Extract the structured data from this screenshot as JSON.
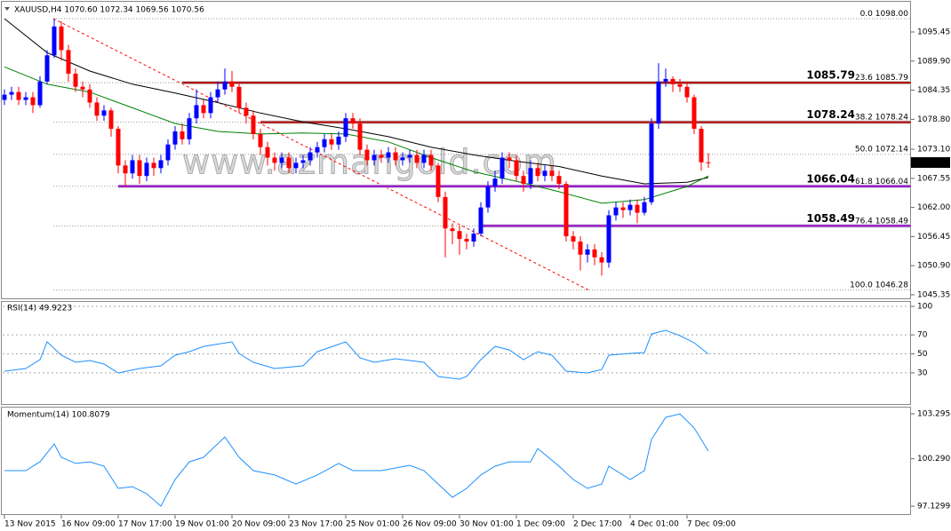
{
  "chart_data": [
    {
      "type": "candlestick",
      "title": "XAUUSD,H4 1070.60 1072.34 1069.56 1070.56",
      "up_color": "#0000ff",
      "down_color": "#ff0000",
      "open": [
        1082.5,
        1083.5,
        1084.0,
        1082.5,
        1083.0,
        1081.5,
        1086.0,
        1091.0,
        1096.5,
        1092.0,
        1087.5,
        1085.0,
        1084.5,
        1082.0,
        1079.5,
        1080.5,
        1077.0,
        1070.0,
        1068.5,
        1071.0,
        1068.0,
        1070.5,
        1069.5,
        1071.0,
        1074.0,
        1076.5,
        1075.0,
        1079.0,
        1081.5,
        1080.0,
        1083.0,
        1084.5,
        1086.0,
        1085.0,
        1081.0,
        1079.5,
        1076.0,
        1073.5,
        1071.5,
        1070.5,
        1071.5,
        1069.5,
        1070.5,
        1071.0,
        1072.5,
        1073.5,
        1075.0,
        1074.0,
        1075.5,
        1079.0,
        1078.0,
        1073.0,
        1071.0,
        1072.0,
        1071.5,
        1072.5,
        1071.0,
        1071.5,
        1072.0,
        1070.5,
        1072.0,
        1070.0,
        1064.0,
        1058.0,
        1057.5,
        1056.0,
        1055.5,
        1057.0,
        1062.0,
        1066.0,
        1067.5,
        1071.5,
        1071.0,
        1068.0,
        1066.5,
        1069.5,
        1068.0,
        1069.0,
        1068.0,
        1066.5,
        1056.5,
        1055.5,
        1053.0,
        1054.0,
        1052.5,
        1051.5,
        1060.5,
        1062.0,
        1061.5,
        1062.5,
        1061.0,
        1063.0,
        1078.0,
        1086.0,
        1086.5,
        1085.5,
        1085.0,
        1083.0,
        1077.0,
        1070.6
      ],
      "high": [
        1084.5,
        1085.0,
        1085.0,
        1084.0,
        1084.0,
        1087.0,
        1092.0,
        1098.0,
        1097.5,
        1093.0,
        1088.5,
        1086.0,
        1085.5,
        1083.0,
        1081.5,
        1081.0,
        1077.5,
        1071.0,
        1072.0,
        1072.0,
        1071.5,
        1071.5,
        1072.0,
        1075.0,
        1077.5,
        1078.0,
        1080.0,
        1084.5,
        1082.5,
        1084.0,
        1086.0,
        1088.5,
        1088.0,
        1086.0,
        1082.0,
        1080.5,
        1077.0,
        1074.5,
        1072.5,
        1072.5,
        1072.5,
        1071.5,
        1072.0,
        1073.5,
        1074.5,
        1076.0,
        1076.0,
        1076.5,
        1080.0,
        1080.0,
        1079.0,
        1074.0,
        1073.0,
        1073.0,
        1073.5,
        1073.5,
        1072.5,
        1073.0,
        1073.0,
        1073.0,
        1073.0,
        1070.5,
        1065.0,
        1059.0,
        1058.5,
        1057.0,
        1058.0,
        1063.0,
        1067.0,
        1069.0,
        1072.5,
        1072.5,
        1072.0,
        1069.0,
        1071.0,
        1070.5,
        1070.0,
        1070.0,
        1069.0,
        1067.0,
        1057.5,
        1056.5,
        1055.0,
        1055.0,
        1053.5,
        1061.5,
        1063.0,
        1063.0,
        1063.5,
        1063.5,
        1064.0,
        1079.0,
        1089.5,
        1088.5,
        1087.0,
        1086.5,
        1086.0,
        1083.5,
        1077.5,
        1072.34
      ],
      "low": [
        1081.5,
        1082.5,
        1081.5,
        1081.5,
        1080.0,
        1081.0,
        1085.5,
        1090.5,
        1090.0,
        1086.0,
        1084.0,
        1083.0,
        1081.0,
        1078.5,
        1078.5,
        1075.5,
        1068.5,
        1066.0,
        1067.5,
        1066.5,
        1067.0,
        1068.0,
        1068.5,
        1070.0,
        1073.0,
        1074.0,
        1074.0,
        1078.0,
        1079.0,
        1079.0,
        1082.0,
        1083.5,
        1084.0,
        1080.0,
        1078.0,
        1075.0,
        1072.0,
        1070.0,
        1069.0,
        1069.5,
        1068.5,
        1068.5,
        1069.5,
        1070.0,
        1071.5,
        1072.5,
        1073.0,
        1073.0,
        1074.5,
        1077.0,
        1072.0,
        1070.0,
        1070.0,
        1070.5,
        1070.5,
        1070.0,
        1070.0,
        1070.5,
        1069.5,
        1069.5,
        1069.0,
        1063.0,
        1052.5,
        1055.0,
        1053.0,
        1054.0,
        1054.5,
        1056.5,
        1061.0,
        1065.0,
        1066.5,
        1069.5,
        1067.0,
        1065.0,
        1065.5,
        1067.0,
        1067.0,
        1067.0,
        1065.5,
        1055.5,
        1054.0,
        1050.0,
        1051.5,
        1051.0,
        1049.0,
        1050.5,
        1059.5,
        1060.0,
        1060.5,
        1059.0,
        1060.5,
        1062.5,
        1077.0,
        1085.0,
        1084.0,
        1084.0,
        1082.0,
        1076.0,
        1069.0,
        1069.56
      ],
      "close": [
        1083.5,
        1084.0,
        1082.5,
        1083.0,
        1081.5,
        1086.0,
        1091.0,
        1096.5,
        1092.0,
        1087.5,
        1085.0,
        1084.5,
        1082.0,
        1079.5,
        1080.5,
        1077.0,
        1070.0,
        1068.5,
        1071.0,
        1068.0,
        1070.5,
        1069.5,
        1071.0,
        1074.0,
        1076.5,
        1075.0,
        1079.0,
        1081.5,
        1080.0,
        1083.0,
        1084.5,
        1086.0,
        1085.0,
        1081.0,
        1079.5,
        1076.0,
        1073.5,
        1071.5,
        1070.5,
        1071.5,
        1069.5,
        1070.5,
        1071.0,
        1072.5,
        1073.5,
        1075.0,
        1074.0,
        1075.5,
        1079.0,
        1078.0,
        1073.0,
        1071.0,
        1072.0,
        1071.5,
        1072.5,
        1071.0,
        1071.5,
        1072.0,
        1070.5,
        1072.0,
        1070.0,
        1064.0,
        1058.0,
        1057.5,
        1056.0,
        1055.5,
        1057.0,
        1062.0,
        1066.0,
        1067.5,
        1071.5,
        1071.0,
        1068.0,
        1066.5,
        1069.5,
        1068.0,
        1069.0,
        1068.0,
        1066.5,
        1056.5,
        1055.5,
        1053.0,
        1054.0,
        1052.5,
        1051.5,
        1060.5,
        1062.0,
        1061.5,
        1062.5,
        1061.0,
        1063.0,
        1078.0,
        1086.0,
        1086.5,
        1085.5,
        1085.0,
        1083.0,
        1077.0,
        1070.6,
        1070.56
      ],
      "ylim": [
        1044.5,
        1100.7
      ],
      "yticks": [
        1095.45,
        {
          "value": 1089.9,
          "label": "1089.90"
        },
        1084.35,
        {
          "value": 1078.8,
          "label": "1078.80"
        },
        {
          "value": 1073.1,
          "label": "1073.10"
        },
        1067.55,
        {
          "value": 1062,
          "label": "1062.00"
        },
        1056.45,
        {
          "value": 1050.9,
          "label": "1050.90"
        },
        1045.35
      ],
      "current_price": 1070.56,
      "moving_averages": [
        {
          "color": "#000000",
          "bar_index": [
            0,
            6,
            12,
            18,
            24,
            30,
            36,
            42,
            48,
            54,
            60,
            66,
            72,
            78,
            84,
            90,
            96,
            99
          ],
          "values": [
            1098.0,
            1091.5,
            1088.0,
            1085.5,
            1083.8,
            1082.0,
            1080.0,
            1078.3,
            1077.0,
            1075.5,
            1073.5,
            1072.0,
            1070.8,
            1069.8,
            1068.0,
            1066.5,
            1066.8,
            1067.7
          ]
        },
        {
          "color": "#008000",
          "bar_index": [
            0,
            6,
            12,
            18,
            24,
            30,
            36,
            42,
            48,
            54,
            60,
            66,
            72,
            78,
            84,
            90,
            96,
            99
          ],
          "values": [
            1088.8,
            1085.5,
            1084.0,
            1081.0,
            1078.0,
            1076.5,
            1076.0,
            1076.2,
            1076.0,
            1074.5,
            1071.5,
            1068.8,
            1067.0,
            1065.0,
            1062.8,
            1063.5,
            1066.0,
            1068.0
          ]
        }
      ],
      "fibonacci": {
        "color": "#ff0000",
        "levels": [
          {
            "ratio": {
              "value": 0,
              "label": "0.0"
            },
            "price": {
              "value": 1098,
              "label": "1098.00"
            }
          },
          {
            "ratio": 23.6,
            "price": 1085.79
          },
          {
            "ratio": 38.2,
            "price": 1078.24
          },
          {
            "ratio": {
              "value": 50,
              "label": "50.0"
            },
            "price": 1072.14
          },
          {
            "ratio": 61.8,
            "price": 1066.04
          },
          {
            "ratio": 76.4,
            "price": 1058.49
          },
          {
            "ratio": {
              "value": 100,
              "label": "100.0"
            },
            "price": 1046.28
          }
        ]
      },
      "levels": [
        {
          "value": 1085.79,
          "color": "#b00000"
        },
        {
          "value": 1078.24,
          "color": "#b00000"
        },
        {
          "value": 1066.04,
          "color": "#9400d3"
        },
        {
          "value": 1058.49,
          "color": "#9400d3"
        }
      ],
      "x_labels": [
        "13 Nov 2015",
        "16 Nov 09:00",
        "17 Nov 17:00",
        "19 Nov 01:00",
        "20 Nov 09:00",
        "23 Nov 17:00",
        "25 Nov 01:00",
        "26 Nov 09:00",
        "30 Nov 01:00",
        "1 Dec 09:00",
        "2 Dec 17:00",
        "4 Dec 01:00",
        "7 Dec 09:00"
      ],
      "watermark": "www.azmangold.com"
    },
    {
      "type": "line",
      "title": "RSI(14) 49.9223",
      "color": "#1e90ff",
      "bar_index": [
        0,
        3,
        5,
        6,
        8,
        10,
        12,
        14,
        16,
        19,
        22,
        24,
        26,
        28,
        32,
        33,
        35,
        38,
        42,
        44,
        48,
        50,
        52,
        55,
        59,
        61,
        64,
        65,
        67,
        69,
        71,
        73,
        75,
        77,
        79,
        82,
        84,
        85,
        88,
        90,
        91,
        93,
        95,
        97,
        99
      ],
      "values": [
        31.8,
        34.6,
        43.9,
        62.6,
        48.6,
        41.1,
        43.0,
        39.3,
        29.9,
        34.6,
        37.4,
        48.6,
        52.3,
        57.9,
        62.6,
        50.5,
        41.1,
        34.6,
        37.4,
        52.3,
        62.6,
        45.8,
        41.1,
        44.9,
        41.1,
        26.2,
        23.4,
        26.2,
        43.9,
        57.9,
        54.2,
        43.9,
        52.3,
        48.6,
        31.8,
        29.9,
        33.6,
        48.6,
        50.5,
        51.4,
        71.0,
        74.8,
        69.2,
        61.7,
        49.9223
      ],
      "ylim": [
        -2.8,
        104.7
      ],
      "yticks": [
        100,
        70,
        50,
        30
      ],
      "grid": true
    },
    {
      "type": "line",
      "title": "Momentum(14) 100.8079",
      "color": "#1e90ff",
      "bar_index": [
        0,
        3,
        5,
        7,
        8,
        10,
        12,
        14,
        16,
        18,
        20,
        22,
        24,
        26,
        28,
        31,
        33,
        35,
        38,
        41,
        44,
        47,
        49,
        53,
        57,
        59,
        61,
        63,
        65,
        67,
        69,
        71,
        74,
        75,
        78,
        80,
        82,
        84,
        85,
        88,
        90,
        91,
        93,
        95,
        97,
        99
      ],
      "values": [
        99.5,
        99.5,
        100.09,
        101.28,
        100.39,
        99.98,
        100.09,
        99.8,
        98.32,
        98.43,
        97.96,
        97.13,
        98.91,
        100.09,
        100.39,
        101.75,
        100.39,
        99.5,
        99.21,
        98.61,
        99.21,
        99.98,
        99.5,
        99.5,
        99.86,
        99.5,
        98.61,
        97.72,
        98.32,
        99.21,
        99.8,
        100.09,
        100.09,
        100.98,
        99.8,
        98.91,
        98.32,
        98.61,
        99.8,
        98.91,
        99.5,
        101.58,
        103.06,
        103.29,
        102.35,
        100.8079
      ],
      "ylim": [
        96.54,
        103.65
      ],
      "yticks": [
        {
          "value": 103.295,
          "label": "103.2950"
        },
        100.2902,
        97.1299
      ],
      "grid": false
    }
  ]
}
